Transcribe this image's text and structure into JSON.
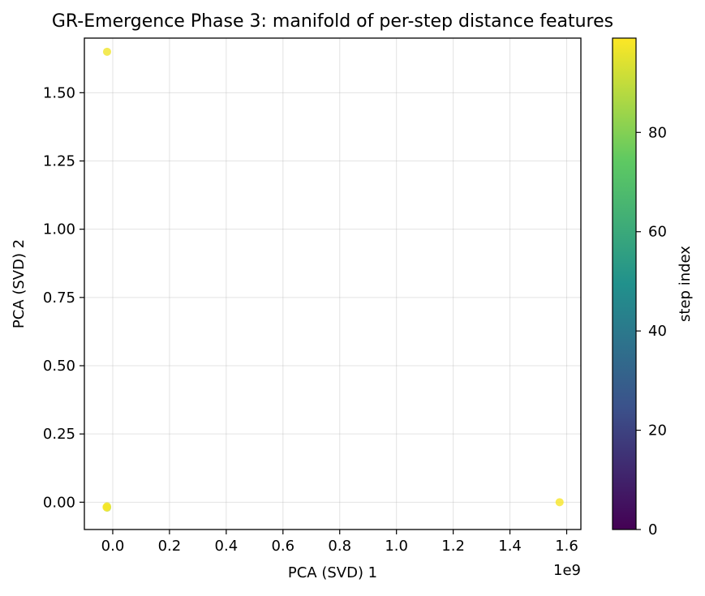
{
  "chart_data": {
    "type": "scatter",
    "title": "GR-Emergence Phase 3: manifold of per-step distance features",
    "xlabel": "PCA (SVD) 1",
    "ylabel": "PCA (SVD) 2",
    "x_offset_text": "1e9",
    "xlim": [
      -0.1,
      1.65
    ],
    "ylim": [
      -0.1,
      1.7
    ],
    "x_ticks": [
      0.0,
      0.2,
      0.4,
      0.6,
      0.8,
      1.0,
      1.2,
      1.4,
      1.6
    ],
    "x_tick_labels": [
      "0.0",
      "0.2",
      "0.4",
      "0.6",
      "0.8",
      "1.0",
      "1.2",
      "1.4",
      "1.6"
    ],
    "y_ticks": [
      0.0,
      0.25,
      0.5,
      0.75,
      1.0,
      1.25,
      1.5
    ],
    "y_tick_labels": [
      "0.00",
      "0.25",
      "0.50",
      "0.75",
      "1.00",
      "1.25",
      "1.50"
    ],
    "grid": true,
    "points": [
      {
        "x": -0.02,
        "y": 1.65,
        "step": 97
      },
      {
        "x": 1.575,
        "y": 0.0,
        "step": 98
      },
      {
        "x": -0.02,
        "y": -0.015,
        "step": 95
      },
      {
        "x": -0.02,
        "y": -0.02,
        "step": 90
      },
      {
        "x": -0.022,
        "y": -0.018,
        "step": 99
      }
    ],
    "colorbar": {
      "label": "step index",
      "range": [
        0,
        99
      ],
      "ticks": [
        0,
        20,
        40,
        60,
        80
      ],
      "tick_labels": [
        "0",
        "20",
        "40",
        "60",
        "80"
      ],
      "colormap": "viridis"
    }
  }
}
